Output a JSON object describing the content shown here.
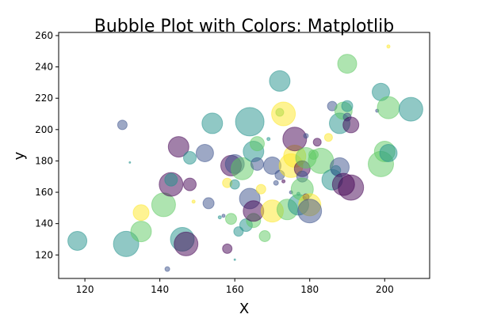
{
  "chart_data": {
    "type": "scatter",
    "title": "Bubble Plot with Colors: Matplotlib",
    "xlabel": "X",
    "ylabel": "y",
    "xlim": [
      113,
      212
    ],
    "ylim": [
      105,
      262
    ],
    "xticks": [
      120,
      140,
      160,
      180,
      200
    ],
    "yticks": [
      120,
      140,
      160,
      180,
      200,
      220,
      240,
      260
    ],
    "grid": false,
    "alpha": 0.5,
    "colors": {
      "dark_purple": "#440154",
      "blue": "#3b528b",
      "teal": "#21918c",
      "green": "#5ec962",
      "yellow": "#fde725"
    },
    "points": [
      {
        "x": 118,
        "y": 129,
        "s": 12,
        "c": "teal"
      },
      {
        "x": 131,
        "y": 127,
        "s": 16,
        "c": "teal"
      },
      {
        "x": 130,
        "y": 203,
        "s": 6,
        "c": "blue"
      },
      {
        "x": 132,
        "y": 179,
        "s": 1,
        "c": "teal"
      },
      {
        "x": 135,
        "y": 135,
        "s": 13,
        "c": "green"
      },
      {
        "x": 135,
        "y": 147,
        "s": 10,
        "c": "yellow"
      },
      {
        "x": 141,
        "y": 152,
        "s": 15,
        "c": "green"
      },
      {
        "x": 142,
        "y": 111,
        "s": 3,
        "c": "blue"
      },
      {
        "x": 143,
        "y": 165,
        "s": 15,
        "c": "dark_purple"
      },
      {
        "x": 145,
        "y": 189,
        "s": 13,
        "c": "dark_purple"
      },
      {
        "x": 146,
        "y": 130,
        "s": 15,
        "c": "teal"
      },
      {
        "x": 147,
        "y": 127,
        "s": 15,
        "c": "dark_purple"
      },
      {
        "x": 143,
        "y": 168,
        "s": 8,
        "c": "teal"
      },
      {
        "x": 148,
        "y": 182,
        "s": 8,
        "c": "teal"
      },
      {
        "x": 148,
        "y": 165,
        "s": 8,
        "c": "dark_purple"
      },
      {
        "x": 149,
        "y": 154,
        "s": 2,
        "c": "yellow"
      },
      {
        "x": 152,
        "y": 185,
        "s": 11,
        "c": "blue"
      },
      {
        "x": 153,
        "y": 153,
        "s": 7,
        "c": "blue"
      },
      {
        "x": 154,
        "y": 204,
        "s": 13,
        "c": "teal"
      },
      {
        "x": 156,
        "y": 144,
        "s": 2,
        "c": "teal"
      },
      {
        "x": 157,
        "y": 145,
        "s": 2,
        "c": "blue"
      },
      {
        "x": 158,
        "y": 124,
        "s": 6,
        "c": "dark_purple"
      },
      {
        "x": 158,
        "y": 166,
        "s": 6,
        "c": "yellow"
      },
      {
        "x": 159,
        "y": 143,
        "s": 7,
        "c": "green"
      },
      {
        "x": 159,
        "y": 177,
        "s": 13,
        "c": "dark_purple"
      },
      {
        "x": 160,
        "y": 178,
        "s": 12,
        "c": "blue"
      },
      {
        "x": 160,
        "y": 165,
        "s": 6,
        "c": "teal"
      },
      {
        "x": 160,
        "y": 117,
        "s": 1,
        "c": "teal"
      },
      {
        "x": 161,
        "y": 135,
        "s": 6,
        "c": "teal"
      },
      {
        "x": 162,
        "y": 175,
        "s": 14,
        "c": "green"
      },
      {
        "x": 163,
        "y": 139,
        "s": 8,
        "c": "teal"
      },
      {
        "x": 164,
        "y": 205,
        "s": 18,
        "c": "teal"
      },
      {
        "x": 164,
        "y": 156,
        "s": 13,
        "c": "blue"
      },
      {
        "x": 165,
        "y": 186,
        "s": 13,
        "c": "teal"
      },
      {
        "x": 165,
        "y": 142,
        "s": 9,
        "c": "green"
      },
      {
        "x": 165,
        "y": 148,
        "s": 13,
        "c": "dark_purple"
      },
      {
        "x": 166,
        "y": 191,
        "s": 9,
        "c": "green"
      },
      {
        "x": 166,
        "y": 178,
        "s": 8,
        "c": "blue"
      },
      {
        "x": 167,
        "y": 162,
        "s": 6,
        "c": "yellow"
      },
      {
        "x": 168,
        "y": 132,
        "s": 7,
        "c": "green"
      },
      {
        "x": 169,
        "y": 194,
        "s": 2,
        "c": "teal"
      },
      {
        "x": 170,
        "y": 148,
        "s": 14,
        "c": "yellow"
      },
      {
        "x": 170,
        "y": 177,
        "s": 11,
        "c": "blue"
      },
      {
        "x": 171,
        "y": 166,
        "s": 3,
        "c": "blue"
      },
      {
        "x": 172,
        "y": 231,
        "s": 13,
        "c": "teal"
      },
      {
        "x": 172,
        "y": 211,
        "s": 5,
        "c": "green"
      },
      {
        "x": 173,
        "y": 210,
        "s": 15,
        "c": "yellow"
      },
      {
        "x": 172,
        "y": 171,
        "s": 6,
        "c": "blue"
      },
      {
        "x": 173,
        "y": 167,
        "s": 2,
        "c": "dark_purple"
      },
      {
        "x": 174,
        "y": 149,
        "s": 13,
        "c": "green"
      },
      {
        "x": 175,
        "y": 177,
        "s": 15,
        "c": "yellow"
      },
      {
        "x": 175,
        "y": 160,
        "s": 2,
        "c": "blue"
      },
      {
        "x": 176,
        "y": 183,
        "s": 14,
        "c": "yellow"
      },
      {
        "x": 176,
        "y": 194,
        "s": 15,
        "c": "dark_purple"
      },
      {
        "x": 177,
        "y": 159,
        "s": 2,
        "c": "teal"
      },
      {
        "x": 177,
        "y": 152,
        "s": 13,
        "c": "teal"
      },
      {
        "x": 178,
        "y": 175,
        "s": 10,
        "c": "dark_purple"
      },
      {
        "x": 178,
        "y": 170,
        "s": 7,
        "c": "blue"
      },
      {
        "x": 178,
        "y": 162,
        "s": 14,
        "c": "green"
      },
      {
        "x": 179,
        "y": 182,
        "s": 13,
        "c": "green"
      },
      {
        "x": 179,
        "y": 157,
        "s": 4,
        "c": "dark_purple"
      },
      {
        "x": 179,
        "y": 196,
        "s": 3,
        "c": "blue"
      },
      {
        "x": 180,
        "y": 152,
        "s": 14,
        "c": "yellow"
      },
      {
        "x": 180,
        "y": 148,
        "s": 15,
        "c": "blue"
      },
      {
        "x": 181,
        "y": 184,
        "s": 6,
        "c": "green"
      },
      {
        "x": 182,
        "y": 192,
        "s": 5,
        "c": "dark_purple"
      },
      {
        "x": 183,
        "y": 180,
        "s": 16,
        "c": "green"
      },
      {
        "x": 185,
        "y": 195,
        "s": 5,
        "c": "yellow"
      },
      {
        "x": 186,
        "y": 215,
        "s": 6,
        "c": "blue"
      },
      {
        "x": 186,
        "y": 168,
        "s": 13,
        "c": "teal"
      },
      {
        "x": 187,
        "y": 174,
        "s": 6,
        "c": "teal"
      },
      {
        "x": 188,
        "y": 204,
        "s": 13,
        "c": "teal"
      },
      {
        "x": 188,
        "y": 176,
        "s": 12,
        "c": "blue"
      },
      {
        "x": 189,
        "y": 212,
        "s": 11,
        "c": "green"
      },
      {
        "x": 189,
        "y": 165,
        "s": 14,
        "c": "dark_purple"
      },
      {
        "x": 190,
        "y": 242,
        "s": 12,
        "c": "green"
      },
      {
        "x": 190,
        "y": 215,
        "s": 7,
        "c": "teal"
      },
      {
        "x": 190,
        "y": 208,
        "s": 5,
        "c": "blue"
      },
      {
        "x": 191,
        "y": 203,
        "s": 10,
        "c": "dark_purple"
      },
      {
        "x": 191,
        "y": 163,
        "s": 16,
        "c": "dark_purple"
      },
      {
        "x": 198,
        "y": 212,
        "s": 2,
        "c": "blue"
      },
      {
        "x": 199,
        "y": 224,
        "s": 11,
        "c": "teal"
      },
      {
        "x": 199,
        "y": 178,
        "s": 16,
        "c": "green"
      },
      {
        "x": 200,
        "y": 186,
        "s": 13,
        "c": "green"
      },
      {
        "x": 201,
        "y": 185,
        "s": 11,
        "c": "teal"
      },
      {
        "x": 201,
        "y": 214,
        "s": 14,
        "c": "green"
      },
      {
        "x": 201,
        "y": 253,
        "s": 2,
        "c": "yellow"
      },
      {
        "x": 207,
        "y": 213,
        "s": 15,
        "c": "teal"
      }
    ]
  }
}
